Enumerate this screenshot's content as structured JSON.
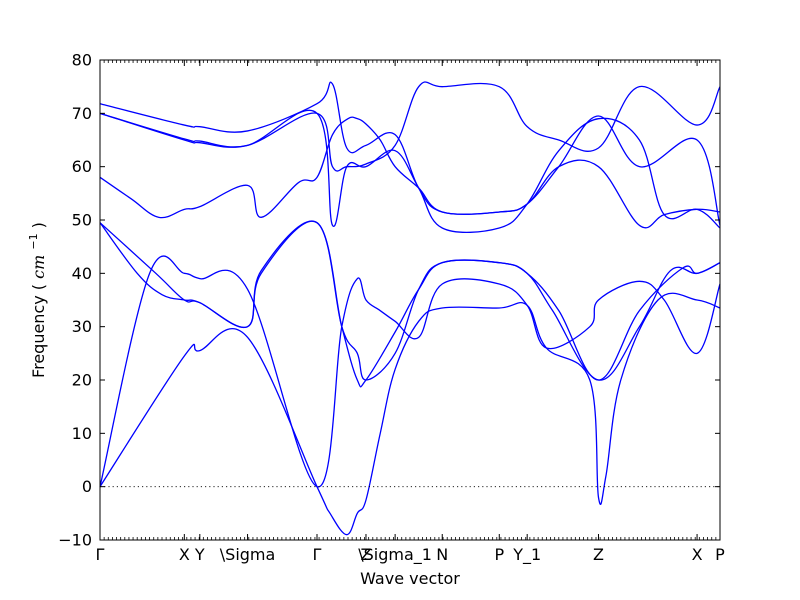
{
  "chart_data": {
    "type": "line",
    "xlabel": "Wave vector",
    "ylabel": "Frequency",
    "ylabel_unit_base": "cm",
    "ylabel_unit_exp": "−1",
    "ylim": [
      -10,
      80
    ],
    "yticks": [
      -10,
      0,
      10,
      20,
      30,
      40,
      50,
      60,
      70,
      80
    ],
    "zero_line": true,
    "line_color": "#0000ff",
    "high_symmetry_points": [
      {
        "label": "Γ",
        "pos": 0
      },
      {
        "label": "X",
        "pos": 0.136
      },
      {
        "label": "Y",
        "pos": 0.161
      },
      {
        "label": "\\Sigma",
        "pos": 0.238
      },
      {
        "label": "Γ",
        "pos": 0.35
      },
      {
        "label": "Z",
        "pos": 0.429
      },
      {
        "label": "\\Sigma_1",
        "pos": 0.476
      },
      {
        "label": "N",
        "pos": 0.552
      },
      {
        "label": "P",
        "pos": 0.644
      },
      {
        "label": "Y_1",
        "pos": 0.689
      },
      {
        "label": "Z",
        "pos": 0.804
      },
      {
        "label": "X",
        "pos": 0.963
      },
      {
        "label": "P",
        "pos": 1.0
      }
    ],
    "series": [
      {
        "x": [
          0,
          0.136,
          0.161,
          0.238,
          0.35,
          0.371,
          0.398,
          0.415,
          0.429,
          0.452,
          0.476,
          0.514,
          0.552,
          0.644,
          0.689,
          0.72,
          0.79,
          0.804,
          0.816,
          0.84,
          0.9,
          0.963,
          1.0
        ],
        "y": [
          0,
          24.5,
          25.5,
          28,
          0,
          -5,
          -9,
          -5,
          -2.5,
          10,
          22,
          31,
          33.5,
          33.5,
          34,
          26,
          20,
          -2,
          2,
          20,
          35,
          35,
          33.5
        ]
      },
      {
        "x": [
          0,
          0.08,
          0.136,
          0.161,
          0.238,
          0.35,
          0.39,
          0.415,
          0.429,
          0.452,
          0.476,
          0.514,
          0.552,
          0.644,
          0.689,
          0.72,
          0.79,
          0.804,
          0.87,
          0.91,
          0.963,
          1.0
        ],
        "y": [
          0,
          40,
          40,
          39,
          37,
          0,
          30,
          39,
          35,
          33,
          31,
          28,
          38,
          38,
          34,
          26,
          30,
          35,
          38.5,
          35,
          25,
          38
        ]
      },
      {
        "x": [
          0,
          0.09,
          0.136,
          0.161,
          0.238,
          0.26,
          0.35,
          0.39,
          0.415,
          0.429,
          0.476,
          0.514,
          0.552,
          0.644,
          0.689,
          0.74,
          0.804,
          0.87,
          0.94,
          0.963,
          1.0
        ],
        "y": [
          49.5,
          40,
          35,
          34.5,
          30,
          40,
          49.5,
          30,
          25,
          20,
          25,
          37,
          42,
          42,
          40,
          33,
          20,
          33,
          41,
          40,
          42
        ]
      },
      {
        "x": [
          0,
          0.06,
          0.1,
          0.136,
          0.161,
          0.238,
          0.26,
          0.35,
          0.39,
          0.415,
          0.429,
          0.476,
          0.514,
          0.552,
          0.644,
          0.689,
          0.73,
          0.804,
          0.87,
          0.92,
          0.963,
          1.0
        ],
        "y": [
          49.5,
          40,
          36,
          35,
          34.5,
          30,
          40.5,
          49.5,
          30,
          20,
          20,
          29,
          37,
          42,
          42,
          40,
          33,
          20,
          30,
          40.5,
          40,
          42
        ]
      },
      {
        "x": [
          0,
          0.05,
          0.095,
          0.136,
          0.161,
          0.238,
          0.26,
          0.32,
          0.35,
          0.375,
          0.4,
          0.415,
          0.429,
          0.452,
          0.476,
          0.514,
          0.552,
          0.644,
          0.689,
          0.74,
          0.804,
          0.87,
          0.91,
          0.963,
          1.0
        ],
        "y": [
          58,
          54,
          50.5,
          52,
          52.5,
          56.5,
          50.5,
          57,
          58,
          66,
          69,
          69,
          68,
          65,
          60,
          56,
          51.5,
          51.5,
          53,
          60,
          60,
          49,
          51,
          52,
          51.5
        ]
      },
      {
        "x": [
          0,
          0.136,
          0.161,
          0.238,
          0.35,
          0.375,
          0.398,
          0.429,
          0.476,
          0.514,
          0.552,
          0.644,
          0.689,
          0.74,
          0.804,
          0.87,
          0.91,
          0.963,
          1.0
        ],
        "y": [
          70,
          65,
          64.5,
          64,
          70,
          49,
          60,
          60,
          63,
          56,
          48.5,
          48.5,
          53,
          63,
          69,
          65,
          51,
          52,
          48.5
        ]
      },
      {
        "x": [
          0,
          0.136,
          0.161,
          0.238,
          0.35,
          0.375,
          0.398,
          0.429,
          0.476,
          0.514,
          0.552,
          0.644,
          0.689,
          0.74,
          0.804,
          0.87,
          0.963,
          1.0
        ],
        "y": [
          71.8,
          67.8,
          67.5,
          66.7,
          71.8,
          75.5,
          63.5,
          64,
          66,
          56,
          51.5,
          51.5,
          53,
          60,
          69.5,
          60,
          65,
          49
        ]
      },
      {
        "x": [
          0,
          0.136,
          0.161,
          0.238,
          0.35,
          0.375,
          0.398,
          0.429,
          0.476,
          0.514,
          0.552,
          0.644,
          0.689,
          0.74,
          0.804,
          0.87,
          0.963,
          1.0
        ],
        "y": [
          70,
          65.2,
          64.8,
          64,
          70,
          60,
          60,
          60.5,
          64,
          75,
          75,
          75,
          67.5,
          65,
          63.5,
          75,
          67.8,
          75
        ]
      }
    ]
  }
}
